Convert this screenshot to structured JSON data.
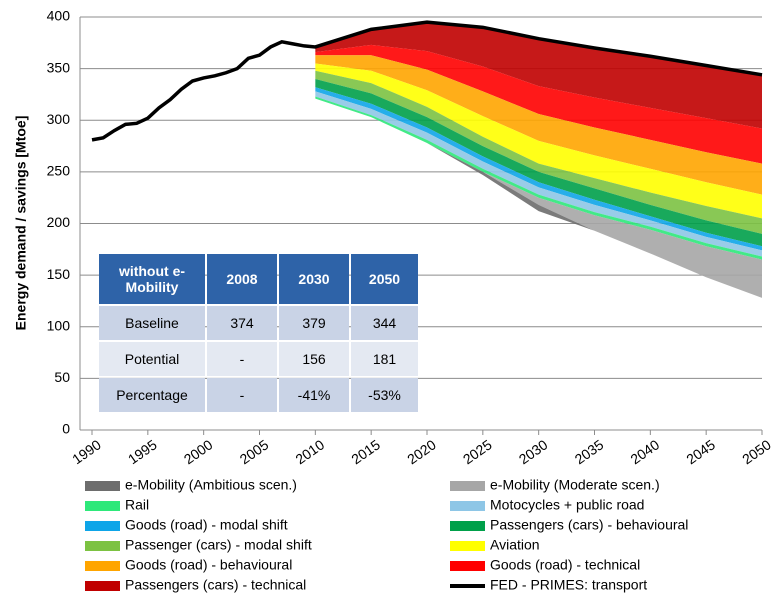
{
  "chart_data": {
    "type": "area",
    "ylabel": "Energy demand / savings [Mtoe]",
    "xlim": [
      1990,
      2050
    ],
    "xticks": [
      1990,
      1995,
      2000,
      2005,
      2010,
      2015,
      2020,
      2025,
      2030,
      2035,
      2040,
      2045,
      2050
    ],
    "ylim": [
      0,
      400
    ],
    "yticks": [
      0,
      50,
      100,
      150,
      200,
      250,
      300,
      350,
      400
    ],
    "grid": true,
    "series": [
      {
        "name": "e-Mobility (Ambitious scen.)",
        "color": "#6d6d6d",
        "x": [
          2010,
          2015,
          2020,
          2025,
          2030,
          2035,
          2040,
          2045,
          2050
        ],
        "values": [
          0,
          0,
          0,
          3,
          6,
          0,
          0,
          0,
          0
        ]
      },
      {
        "name": "e-Mobility (Moderate scen.)",
        "color": "#a6a6a6",
        "x": [
          2010,
          2015,
          2020,
          2025,
          2030,
          2035,
          2040,
          2045,
          2050
        ],
        "values": [
          0,
          0,
          0,
          0,
          7,
          15,
          23,
          30,
          37
        ]
      },
      {
        "name": "Rail",
        "color": "#2ee87a",
        "x": [
          2010,
          2015,
          2020,
          2025,
          2030,
          2035,
          2040,
          2045,
          2050
        ],
        "values": [
          2,
          2,
          3,
          3,
          3,
          3,
          3,
          3,
          3
        ]
      },
      {
        "name": "Motocycles + public road",
        "color": "#8ec6e6",
        "x": [
          2010,
          2015,
          2020,
          2025,
          2030,
          2035,
          2040,
          2045,
          2050
        ],
        "values": [
          5,
          6,
          7,
          7,
          7,
          7,
          6,
          6,
          6
        ]
      },
      {
        "name": "Goods (road) - modal shift",
        "color": "#0ea5e8",
        "x": [
          2010,
          2015,
          2020,
          2025,
          2030,
          2035,
          2040,
          2045,
          2050
        ],
        "values": [
          4,
          5,
          5,
          5,
          5,
          5,
          4,
          4,
          4
        ]
      },
      {
        "name": "Passengers (cars) - behavioural",
        "color": "#00a04a",
        "x": [
          2010,
          2015,
          2020,
          2025,
          2030,
          2035,
          2040,
          2045,
          2050
        ],
        "values": [
          8,
          10,
          10,
          10,
          10,
          11,
          11,
          12,
          12
        ]
      },
      {
        "name": "Passenger (cars) - modal shift",
        "color": "#7cc242",
        "x": [
          2010,
          2015,
          2020,
          2025,
          2030,
          2035,
          2040,
          2045,
          2050
        ],
        "values": [
          8,
          10,
          10,
          9,
          8,
          10,
          12,
          14,
          15
        ]
      },
      {
        "name": "Aviation",
        "color": "#ffff00",
        "x": [
          2010,
          2015,
          2020,
          2025,
          2030,
          2035,
          2040,
          2045,
          2050
        ],
        "values": [
          7,
          12,
          16,
          20,
          22,
          22,
          23,
          23,
          23
        ]
      },
      {
        "name": "Goods (road) - behavioural",
        "color": "#ffa500",
        "x": [
          2010,
          2015,
          2020,
          2025,
          2030,
          2035,
          2040,
          2045,
          2050
        ],
        "values": [
          8,
          15,
          20,
          24,
          26,
          27,
          28,
          29,
          30
        ]
      },
      {
        "name": "Goods (road) - technical",
        "color": "#ff0000",
        "x": [
          2010,
          2015,
          2020,
          2025,
          2030,
          2035,
          2040,
          2045,
          2050
        ],
        "values": [
          3,
          10,
          18,
          24,
          27,
          29,
          31,
          33,
          34
        ]
      },
      {
        "name": "Passengers (cars) - technical",
        "color": "#c00000",
        "x": [
          2010,
          2015,
          2020,
          2025,
          2030,
          2035,
          2040,
          2045,
          2050
        ],
        "values": [
          5,
          15,
          28,
          38,
          46,
          48,
          50,
          51,
          52
        ]
      },
      {
        "name": "FED - PRIMES: transport",
        "type": "line",
        "color": "#000000",
        "x": [
          1990,
          1991,
          1992,
          1993,
          1994,
          1995,
          1996,
          1997,
          1998,
          1999,
          2000,
          2001,
          2002,
          2003,
          2004,
          2005,
          2006,
          2007,
          2008,
          2009,
          2010,
          2015,
          2020,
          2025,
          2030,
          2035,
          2040,
          2045,
          2050
        ],
        "values": [
          281,
          283,
          290,
          296,
          297,
          302,
          312,
          320,
          330,
          338,
          341,
          343,
          346,
          350,
          360,
          363,
          371,
          376,
          374,
          372,
          371,
          388,
          395,
          390,
          379,
          370,
          362,
          353,
          344
        ]
      }
    ]
  },
  "table": {
    "header": [
      "without e-Mobility",
      "2008",
      "2030",
      "2050"
    ],
    "rows": [
      [
        "Baseline",
        "374",
        "379",
        "344"
      ],
      [
        "Potential",
        "-",
        "156",
        "181"
      ],
      [
        "Percentage",
        "-",
        "-41%",
        "-53%"
      ]
    ]
  }
}
